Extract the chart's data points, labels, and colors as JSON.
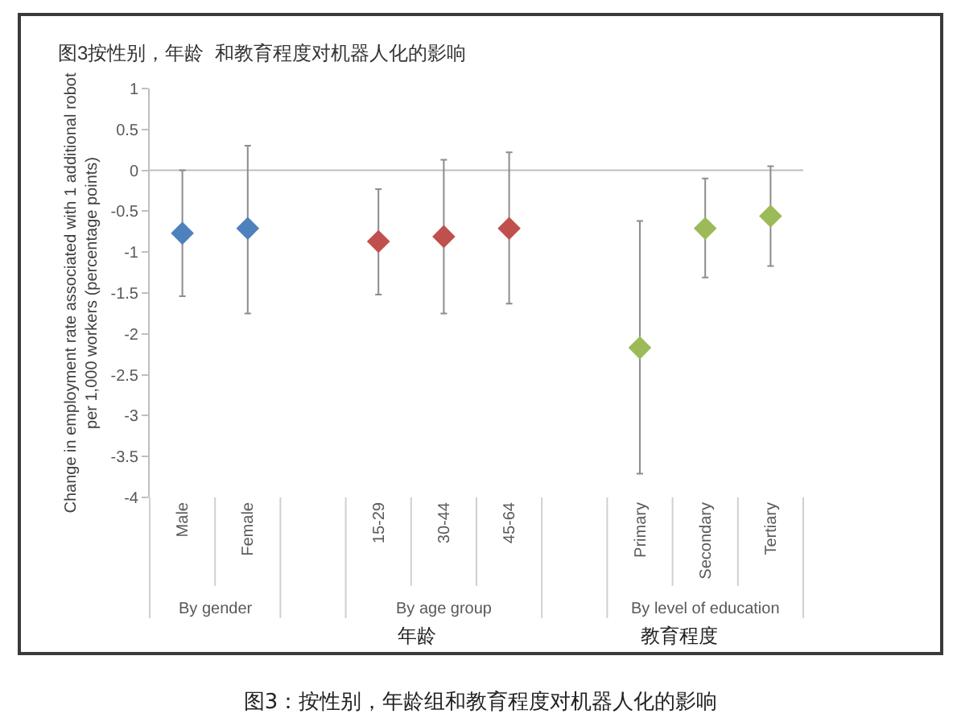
{
  "chart_data": {
    "type": "scatter",
    "title": "图3按性别，年龄  和教育程度对机器人化的影响",
    "ylabel": "Change in employment rate associated with 1 additional robot per 1,000 workers (percentage points)",
    "categories": [
      "Male",
      "Female",
      null,
      "15-29",
      "30-44",
      "45-64",
      null,
      "Primary",
      "Secondary",
      "Tertiary"
    ],
    "series": [
      {
        "color": "#4f81bd",
        "values": [
          -0.77,
          -0.71,
          null,
          null,
          null,
          null,
          null,
          null,
          null,
          null
        ],
        "errors": [
          [
            -1.54,
            0
          ],
          [
            -1.75,
            0.3
          ],
          null,
          null,
          null,
          null,
          null,
          null,
          null,
          null
        ]
      },
      {
        "color": "#c0504d",
        "values": [
          null,
          null,
          null,
          -0.87,
          -0.81,
          -0.71,
          null,
          null,
          null,
          null
        ],
        "errors": [
          null,
          null,
          null,
          [
            -1.52,
            -0.23
          ],
          [
            -1.75,
            0.13
          ],
          [
            -1.63,
            0.22
          ],
          null,
          null,
          null,
          null
        ]
      },
      {
        "color": "#9bbb59",
        "values": [
          null,
          null,
          null,
          null,
          null,
          null,
          null,
          -2.17,
          -0.71,
          -0.56
        ],
        "errors": [
          null,
          null,
          null,
          null,
          null,
          null,
          null,
          [
            -3.71,
            -0.62
          ],
          [
            -1.31,
            -0.1
          ],
          [
            -1.17,
            0.05
          ]
        ]
      }
    ],
    "ylim": [
      -4,
      1
    ],
    "yticks": [
      1,
      0.5,
      0,
      -0.5,
      -1,
      -1.5,
      -2,
      -2.5,
      -3,
      -3.5,
      -4
    ],
    "ref_lines": [
      {
        "axis": "y",
        "value": 0,
        "color": "#bfbfbf"
      }
    ],
    "marker": "diamond",
    "grid": false,
    "annotations": [
      "By gender",
      "By age group",
      "By level of education",
      "年龄",
      "教育程度",
      "图3：按性别，年龄组和教育程度对机器人化的影响"
    ]
  }
}
